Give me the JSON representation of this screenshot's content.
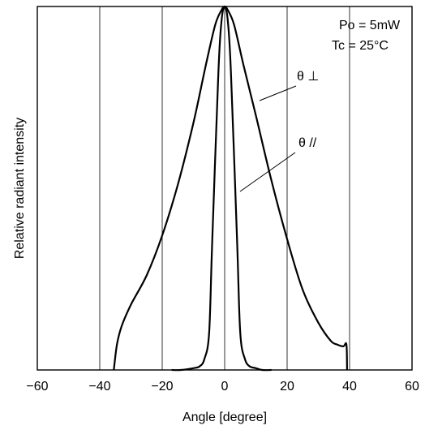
{
  "chart_data": {
    "type": "line",
    "title": "",
    "xlabel": "Angle [degree]",
    "ylabel": "Relative radiant intensity",
    "xlim": [
      -60,
      60
    ],
    "ylim": [
      0,
      1
    ],
    "xticks": [
      -60,
      -40,
      -20,
      0,
      20,
      40,
      60
    ],
    "xtick_labels": [
      "−60",
      "−40",
      "−20",
      "0",
      "20",
      "40",
      "60"
    ],
    "grid": "vertical",
    "annotations": [
      "Po = 5mW",
      "Tc = 25°C"
    ],
    "series": [
      {
        "name": "θ ⊥",
        "x": [
          -35.5,
          -34.5,
          -33,
          -30,
          -25,
          -20,
          -15,
          -10,
          -6,
          -3,
          -1,
          0,
          1,
          3,
          6,
          10,
          15,
          20,
          25,
          30,
          34,
          36,
          38,
          39,
          39.2
        ],
        "y": [
          0.0,
          0.07,
          0.12,
          0.18,
          0.26,
          0.37,
          0.51,
          0.68,
          0.84,
          0.95,
          0.99,
          1.0,
          0.99,
          0.95,
          0.84,
          0.7,
          0.52,
          0.36,
          0.22,
          0.13,
          0.08,
          0.07,
          0.065,
          0.07,
          0.0
        ]
      },
      {
        "name": "θ //",
        "x": [
          -17,
          -14,
          -10,
          -8,
          -6.5,
          -5,
          -4,
          -2,
          -1,
          0,
          1,
          2,
          4,
          5,
          6.5,
          8,
          10,
          12,
          15
        ],
        "y": [
          0.0,
          0.0,
          0.005,
          0.01,
          0.03,
          0.1,
          0.35,
          0.82,
          0.96,
          1.0,
          0.96,
          0.82,
          0.35,
          0.1,
          0.03,
          0.01,
          0.005,
          0.0,
          0.0
        ]
      }
    ]
  }
}
